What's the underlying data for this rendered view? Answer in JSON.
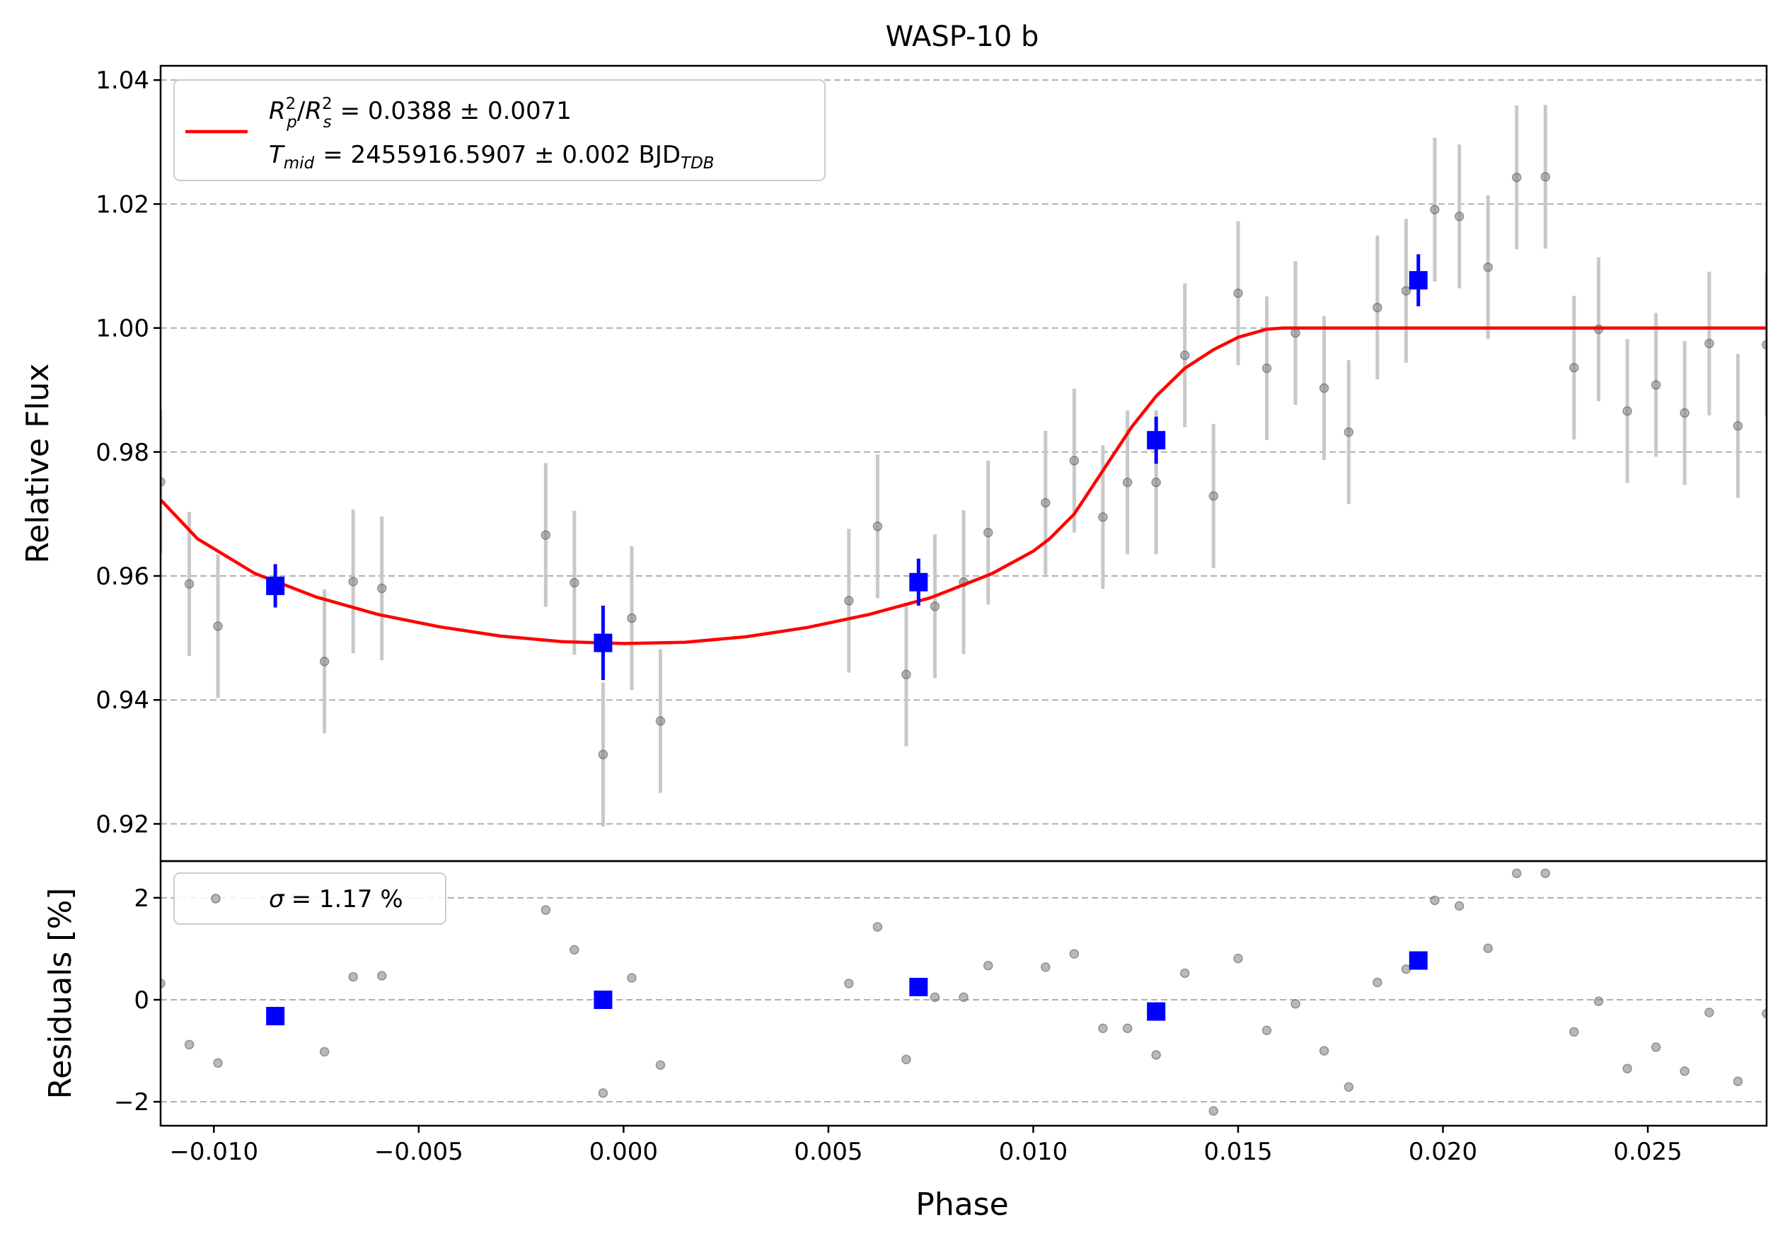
{
  "chart_data": {
    "title": "WASP-10 b",
    "xlabel": "Phase",
    "xlim": [
      -0.0113,
      0.0279
    ],
    "xticks": [
      -0.01,
      -0.005,
      0.0,
      0.005,
      0.01,
      0.015,
      0.02,
      0.025
    ],
    "xtick_labels": [
      "−0.010",
      "−0.005",
      "0.000",
      "0.005",
      "0.010",
      "0.015",
      "0.020",
      "0.025"
    ],
    "top_panel": {
      "type": "scatter",
      "ylabel": "Relative Flux",
      "ylim": [
        0.914,
        1.0423
      ],
      "yticks": [
        0.92,
        0.94,
        0.96,
        0.98,
        1.0,
        1.02,
        1.04
      ],
      "ytick_labels": [
        "0.92",
        "0.94",
        "0.96",
        "0.98",
        "1.00",
        "1.02",
        "1.04"
      ],
      "grid": "horizontal dashed",
      "legend": {
        "placement": "top-left",
        "rp_rs_label": "R",
        "rp_sub": "p",
        "rs_sub": "s",
        "sq_sup": "2",
        "slash": "/",
        "rp_rs_value": "= 0.0388 ± 0.0071",
        "tmid_label": "T",
        "tmid_sub": "mid",
        "tmid_value": "= 2455916.5907 ± 0.002 BJD",
        "tmid_unit_sub": "TDB"
      },
      "series": [
        {
          "kind": "data",
          "color": "#808080",
          "x": [
            -0.0113,
            -0.0106,
            -0.0099,
            -0.0073,
            -0.0066,
            -0.0059,
            -0.0019,
            -0.0012,
            -0.0005,
            0.0002,
            0.0009,
            0.0055,
            0.0062,
            0.0069,
            0.0076,
            0.0083,
            0.0089,
            0.0103,
            0.011,
            0.0117,
            0.0123,
            0.013,
            0.0137,
            0.0144,
            0.015,
            0.0157,
            0.0164,
            0.0171,
            0.0177,
            0.0184,
            0.0191,
            0.0198,
            0.0204,
            0.0211,
            0.0218,
            0.0225,
            0.0232,
            0.0238,
            0.0245,
            0.0252,
            0.0259,
            0.0265,
            0.0272,
            0.0279
          ],
          "y": [
            0.9752,
            0.9587,
            0.9519,
            0.9462,
            0.9591,
            0.958,
            0.9666,
            0.9589,
            0.9312,
            0.9532,
            0.9366,
            0.956,
            0.968,
            0.9441,
            0.9551,
            0.959,
            0.967,
            0.9718,
            0.9786,
            0.9695,
            0.9751,
            0.9751,
            0.9956,
            0.9729,
            1.0056,
            0.9935,
            0.9992,
            0.9903,
            0.9832,
            1.0033,
            1.006,
            1.0191,
            1.018,
            1.0098,
            1.0243,
            1.0244,
            0.9936,
            0.9998,
            0.9866,
            0.9908,
            0.9863,
            0.9975,
            0.9842,
            0.9973
          ],
          "yerr": 0.0116
        },
        {
          "kind": "binned",
          "color": "#0000ff",
          "x": [
            -0.0085,
            -0.0005,
            0.0072,
            0.013,
            0.0194
          ],
          "y": [
            0.9584,
            0.9492,
            0.959,
            0.9819,
            1.0077
          ],
          "yerr": [
            0.0035,
            0.006,
            0.0038,
            0.0038,
            0.0042
          ]
        },
        {
          "kind": "model",
          "color": "#ff0000",
          "x": [
            -0.0113,
            -0.0104,
            -0.009,
            -0.0075,
            -0.006,
            -0.0045,
            -0.003,
            -0.0015,
            0.0,
            0.0015,
            0.003,
            0.0045,
            0.006,
            0.0075,
            0.009,
            0.01,
            0.0104,
            0.011,
            0.0117,
            0.0124,
            0.013,
            0.0137,
            0.0144,
            0.015,
            0.0157,
            0.0161,
            0.02,
            0.0279
          ],
          "y": [
            0.9723,
            0.966,
            0.9604,
            0.9566,
            0.9538,
            0.9518,
            0.9503,
            0.9494,
            0.9491,
            0.9493,
            0.9502,
            0.9517,
            0.9538,
            0.9565,
            0.9604,
            0.964,
            0.966,
            0.97,
            0.977,
            0.984,
            0.989,
            0.9935,
            0.9965,
            0.9985,
            0.9998,
            1.0,
            1.0,
            1.0
          ]
        }
      ]
    },
    "bottom_panel": {
      "type": "scatter",
      "ylabel": "Residuals [%]",
      "ylim": [
        -2.47,
        2.72
      ],
      "yticks": [
        -2,
        0,
        2
      ],
      "ytick_labels": [
        "−2",
        "0",
        "2"
      ],
      "grid": "horizontal dashed",
      "legend": {
        "placement": "top-left",
        "sigma_symbol": "σ",
        "sigma_value": "= 1.17 %"
      },
      "series": [
        {
          "kind": "data",
          "color": "#808080",
          "x": [
            -0.0113,
            -0.0106,
            -0.0099,
            -0.0073,
            -0.0066,
            -0.0059,
            -0.0019,
            -0.0012,
            -0.0005,
            0.0002,
            0.0009,
            0.0055,
            0.0062,
            0.0069,
            0.0076,
            0.0083,
            0.0089,
            0.0103,
            0.011,
            0.0117,
            0.0123,
            0.013,
            0.0137,
            0.0144,
            0.015,
            0.0157,
            0.0164,
            0.0171,
            0.0177,
            0.0184,
            0.0191,
            0.0198,
            0.0204,
            0.0211,
            0.0218,
            0.0225,
            0.0232,
            0.0238,
            0.0245,
            0.0252,
            0.0259,
            0.0265,
            0.0272,
            0.0279
          ],
          "y": [
            0.32,
            -0.88,
            -1.24,
            -1.02,
            0.45,
            0.47,
            1.76,
            0.98,
            -1.83,
            0.43,
            -1.28,
            0.32,
            1.43,
            -1.17,
            0.05,
            0.05,
            0.67,
            0.64,
            0.9,
            -0.56,
            -0.56,
            -1.08,
            0.52,
            -2.18,
            0.81,
            -0.6,
            -0.08,
            -1.0,
            -1.71,
            0.34,
            0.6,
            1.95,
            1.84,
            1.01,
            2.48,
            2.48,
            -0.63,
            -0.03,
            -1.35,
            -0.93,
            -1.4,
            -0.25,
            -1.6,
            -0.27
          ]
        },
        {
          "kind": "binned",
          "color": "#0000ff",
          "x": [
            -0.0085,
            -0.0005,
            0.0072,
            0.013,
            0.0194
          ],
          "y": [
            -0.32,
            0.0,
            0.25,
            -0.23,
            0.77
          ]
        }
      ]
    }
  }
}
